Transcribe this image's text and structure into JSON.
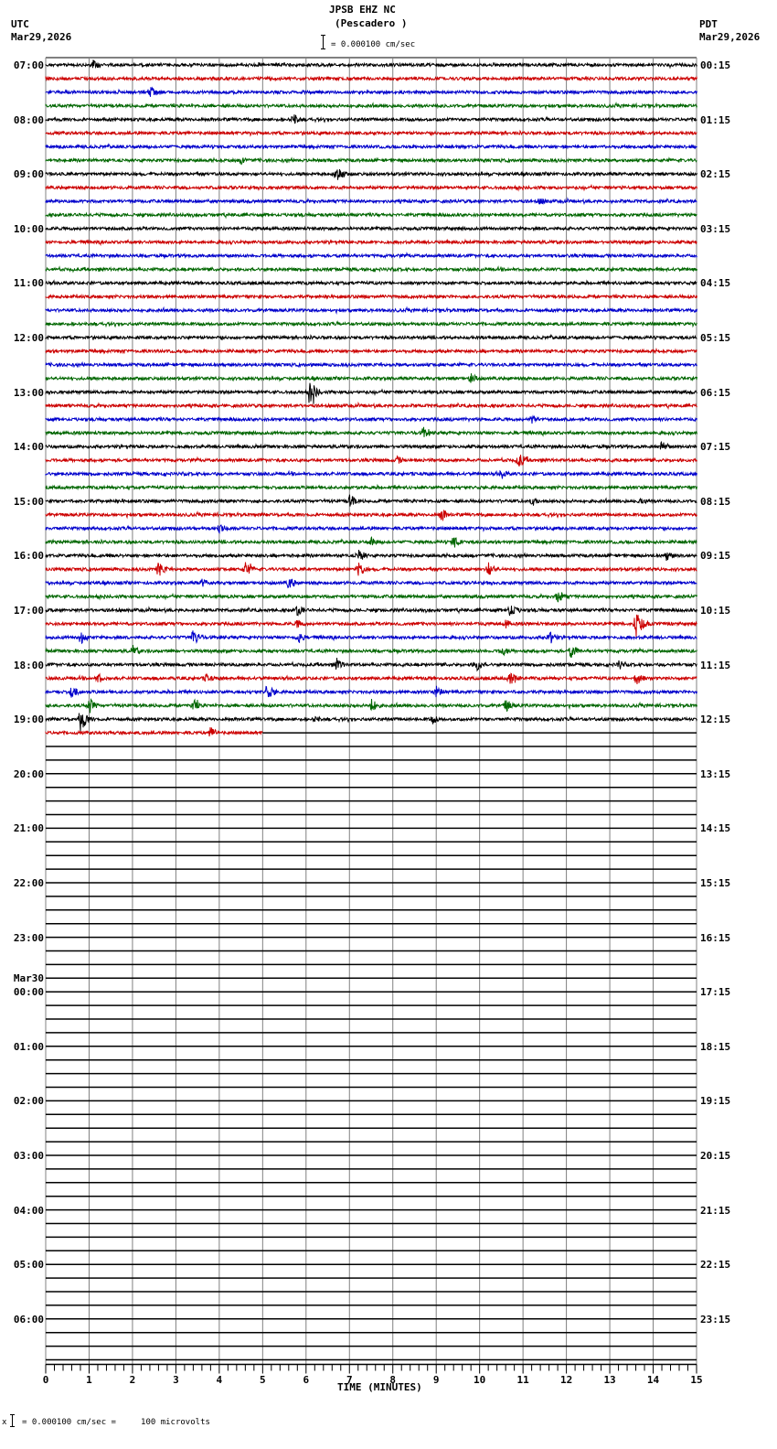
{
  "header": {
    "title": "JPSB EHZ NC",
    "subtitle": "(Pescadero )",
    "scale_text": "= 0.000100 cm/sec",
    "left_tz": "UTC",
    "left_date": "Mar29,2026",
    "right_tz": "PDT",
    "right_date": "Mar29,2026"
  },
  "footer": {
    "scale_note": "= 0.000100 cm/sec =     100 microvolts",
    "scale_prefix": "x"
  },
  "chart_data": {
    "type": "line",
    "title": "JPSB EHZ NC (Pescadero ) helicorder",
    "xlabel": "TIME (MINUTES)",
    "ylabel": "",
    "xlim": [
      0,
      15
    ],
    "x_ticks": [
      "0",
      "1",
      "2",
      "3",
      "4",
      "5",
      "6",
      "7",
      "8",
      "9",
      "10",
      "11",
      "12",
      "13",
      "14",
      "15"
    ],
    "rows_per_hour": 4,
    "trace_colors": [
      "#000000",
      "#cc0000",
      "#0000cc",
      "#006600"
    ],
    "left_labels": [
      {
        "row": 0,
        "text": "07:00"
      },
      {
        "row": 4,
        "text": "08:00"
      },
      {
        "row": 8,
        "text": "09:00"
      },
      {
        "row": 12,
        "text": "10:00"
      },
      {
        "row": 16,
        "text": "11:00"
      },
      {
        "row": 20,
        "text": "12:00"
      },
      {
        "row": 24,
        "text": "13:00"
      },
      {
        "row": 28,
        "text": "14:00"
      },
      {
        "row": 32,
        "text": "15:00"
      },
      {
        "row": 36,
        "text": "16:00"
      },
      {
        "row": 40,
        "text": "17:00"
      },
      {
        "row": 44,
        "text": "18:00"
      },
      {
        "row": 48,
        "text": "19:00"
      },
      {
        "row": 52,
        "text": "20:00"
      },
      {
        "row": 56,
        "text": "21:00"
      },
      {
        "row": 60,
        "text": "22:00"
      },
      {
        "row": 64,
        "text": "23:00"
      },
      {
        "row": 67,
        "text": "Mar30"
      },
      {
        "row": 68,
        "text": "00:00"
      },
      {
        "row": 72,
        "text": "01:00"
      },
      {
        "row": 76,
        "text": "02:00"
      },
      {
        "row": 80,
        "text": "03:00"
      },
      {
        "row": 84,
        "text": "04:00"
      },
      {
        "row": 88,
        "text": "05:00"
      },
      {
        "row": 92,
        "text": "06:00"
      }
    ],
    "right_labels": [
      {
        "row": 0,
        "text": "00:15"
      },
      {
        "row": 4,
        "text": "01:15"
      },
      {
        "row": 8,
        "text": "02:15"
      },
      {
        "row": 12,
        "text": "03:15"
      },
      {
        "row": 16,
        "text": "04:15"
      },
      {
        "row": 20,
        "text": "05:15"
      },
      {
        "row": 24,
        "text": "06:15"
      },
      {
        "row": 28,
        "text": "07:15"
      },
      {
        "row": 32,
        "text": "08:15"
      },
      {
        "row": 36,
        "text": "09:15"
      },
      {
        "row": 40,
        "text": "10:15"
      },
      {
        "row": 44,
        "text": "11:15"
      },
      {
        "row": 48,
        "text": "12:15"
      },
      {
        "row": 52,
        "text": "13:15"
      },
      {
        "row": 56,
        "text": "14:15"
      },
      {
        "row": 60,
        "text": "15:15"
      },
      {
        "row": 64,
        "text": "16:15"
      },
      {
        "row": 68,
        "text": "17:15"
      },
      {
        "row": 72,
        "text": "18:15"
      },
      {
        "row": 76,
        "text": "19:15"
      },
      {
        "row": 80,
        "text": "20:15"
      },
      {
        "row": 84,
        "text": "21:15"
      },
      {
        "row": 88,
        "text": "22:15"
      },
      {
        "row": 92,
        "text": "23:15"
      }
    ],
    "total_rows": 96,
    "data_rows": 50,
    "last_row_end_minute": 5,
    "events": [
      {
        "row": 0,
        "minute": 1.1,
        "amp": 6
      },
      {
        "row": 2,
        "minute": 2.4,
        "amp": 7
      },
      {
        "row": 4,
        "minute": 5.7,
        "amp": 8
      },
      {
        "row": 7,
        "minute": 4.5,
        "amp": 6
      },
      {
        "row": 8,
        "minute": 6.7,
        "amp": 10
      },
      {
        "row": 10,
        "minute": 11.4,
        "amp": 5
      },
      {
        "row": 23,
        "minute": 9.8,
        "amp": 6
      },
      {
        "row": 24,
        "minute": 6.1,
        "amp": 12
      },
      {
        "row": 26,
        "minute": 11.2,
        "amp": 6
      },
      {
        "row": 27,
        "minute": 8.7,
        "amp": 7
      },
      {
        "row": 28,
        "minute": 14.2,
        "amp": 7
      },
      {
        "row": 29,
        "minute": 10.9,
        "amp": 10
      },
      {
        "row": 29,
        "minute": 8.1,
        "amp": 5
      },
      {
        "row": 30,
        "minute": 10.5,
        "amp": 6
      },
      {
        "row": 32,
        "minute": 7.0,
        "amp": 8
      },
      {
        "row": 32,
        "minute": 11.2,
        "amp": 6
      },
      {
        "row": 32,
        "minute": 13.7,
        "amp": 5
      },
      {
        "row": 33,
        "minute": 9.1,
        "amp": 8
      },
      {
        "row": 34,
        "minute": 4.0,
        "amp": 7
      },
      {
        "row": 35,
        "minute": 7.5,
        "amp": 6
      },
      {
        "row": 35,
        "minute": 9.4,
        "amp": 8
      },
      {
        "row": 36,
        "minute": 7.2,
        "amp": 9
      },
      {
        "row": 36,
        "minute": 14.3,
        "amp": 6
      },
      {
        "row": 37,
        "minute": 2.6,
        "amp": 9
      },
      {
        "row": 37,
        "minute": 4.6,
        "amp": 9
      },
      {
        "row": 37,
        "minute": 7.2,
        "amp": 9
      },
      {
        "row": 37,
        "minute": 10.2,
        "amp": 9
      },
      {
        "row": 38,
        "minute": 3.6,
        "amp": 6
      },
      {
        "row": 38,
        "minute": 5.6,
        "amp": 8
      },
      {
        "row": 39,
        "minute": 11.8,
        "amp": 9
      },
      {
        "row": 40,
        "minute": 5.8,
        "amp": 7
      },
      {
        "row": 40,
        "minute": 10.7,
        "amp": 10
      },
      {
        "row": 41,
        "minute": 13.6,
        "amp": 16
      },
      {
        "row": 41,
        "minute": 5.8,
        "amp": 6
      },
      {
        "row": 41,
        "minute": 10.6,
        "amp": 6
      },
      {
        "row": 42,
        "minute": 0.8,
        "amp": 8
      },
      {
        "row": 42,
        "minute": 3.4,
        "amp": 10
      },
      {
        "row": 42,
        "minute": 5.8,
        "amp": 8
      },
      {
        "row": 42,
        "minute": 11.6,
        "amp": 9
      },
      {
        "row": 43,
        "minute": 2.0,
        "amp": 7
      },
      {
        "row": 43,
        "minute": 10.5,
        "amp": 7
      },
      {
        "row": 43,
        "minute": 12.1,
        "amp": 8
      },
      {
        "row": 44,
        "minute": 6.7,
        "amp": 8
      },
      {
        "row": 44,
        "minute": 9.9,
        "amp": 9
      },
      {
        "row": 44,
        "minute": 13.2,
        "amp": 6
      },
      {
        "row": 45,
        "minute": 1.2,
        "amp": 7
      },
      {
        "row": 45,
        "minute": 3.7,
        "amp": 6
      },
      {
        "row": 45,
        "minute": 10.7,
        "amp": 10
      },
      {
        "row": 45,
        "minute": 13.6,
        "amp": 9
      },
      {
        "row": 46,
        "minute": 0.6,
        "amp": 8
      },
      {
        "row": 46,
        "minute": 5.1,
        "amp": 9
      },
      {
        "row": 46,
        "minute": 9.0,
        "amp": 7
      },
      {
        "row": 47,
        "minute": 1.0,
        "amp": 9
      },
      {
        "row": 47,
        "minute": 3.4,
        "amp": 7
      },
      {
        "row": 47,
        "minute": 7.5,
        "amp": 8
      },
      {
        "row": 47,
        "minute": 10.6,
        "amp": 8
      },
      {
        "row": 48,
        "minute": 0.8,
        "amp": 14
      },
      {
        "row": 48,
        "minute": 6.2,
        "amp": 5
      },
      {
        "row": 48,
        "minute": 8.9,
        "amp": 6
      },
      {
        "row": 49,
        "minute": 3.8,
        "amp": 7
      }
    ]
  }
}
